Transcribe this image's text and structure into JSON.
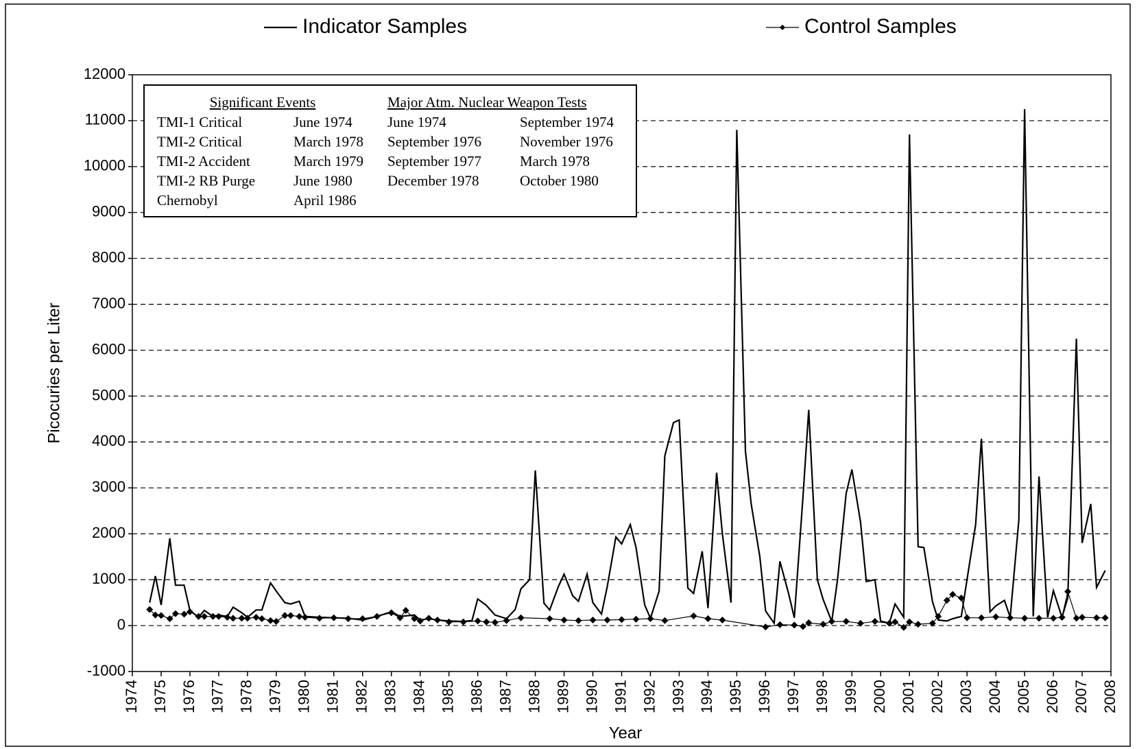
{
  "chart_data": {
    "type": "line",
    "x_label": "Year",
    "y_label": "Picocuries per Liter",
    "xlim": [
      1974,
      2008
    ],
    "xticks": [
      1974,
      1975,
      1976,
      1977,
      1978,
      1979,
      1980,
      1981,
      1982,
      1983,
      1984,
      1985,
      1986,
      1987,
      1988,
      1989,
      1990,
      1991,
      1992,
      1993,
      1994,
      1995,
      1996,
      1997,
      1998,
      1999,
      2000,
      2001,
      2002,
      2003,
      2004,
      2005,
      2006,
      2007,
      2008
    ],
    "ylim": [
      -1000,
      12000
    ],
    "yticks": [
      -1000,
      0,
      1000,
      2000,
      3000,
      4000,
      5000,
      6000,
      7000,
      8000,
      9000,
      10000,
      11000,
      12000
    ],
    "grid": true,
    "series": [
      {
        "name": "Indicator Samples",
        "color": "#000000",
        "marker": "none",
        "x": [
          1974.6,
          1974.8,
          1975.0,
          1975.3,
          1975.5,
          1975.8,
          1976.0,
          1976.3,
          1976.5,
          1976.8,
          1977.0,
          1977.3,
          1977.5,
          1977.8,
          1978.0,
          1978.3,
          1978.5,
          1978.8,
          1979.0,
          1979.3,
          1979.5,
          1979.8,
          1980.0,
          1980.5,
          1981.0,
          1981.5,
          1982.0,
          1982.5,
          1983.0,
          1983.3,
          1983.8,
          1984.0,
          1984.3,
          1984.6,
          1985.0,
          1985.5,
          1985.8,
          1986.0,
          1986.3,
          1986.6,
          1987.0,
          1987.3,
          1987.5,
          1987.8,
          1988.0,
          1988.3,
          1988.5,
          1988.8,
          1989.0,
          1989.3,
          1989.5,
          1989.8,
          1990.0,
          1990.3,
          1990.5,
          1990.8,
          1991.0,
          1991.3,
          1991.5,
          1991.8,
          1992.0,
          1992.3,
          1992.5,
          1992.8,
          1993.0,
          1993.3,
          1993.5,
          1993.8,
          1994.0,
          1994.3,
          1994.5,
          1994.8,
          1995.0,
          1995.3,
          1995.5,
          1995.8,
          1996.0,
          1996.3,
          1996.5,
          1996.8,
          1997.0,
          1997.3,
          1997.5,
          1997.8,
          1998.0,
          1998.3,
          1998.5,
          1998.8,
          1999.0,
          1999.3,
          1999.5,
          1999.8,
          2000.0,
          2000.3,
          2000.5,
          2000.8,
          2001.0,
          2001.3,
          2001.5,
          2001.8,
          2002.0,
          2002.3,
          2002.5,
          2002.8,
          2003.0,
          2003.3,
          2003.5,
          2003.8,
          2004.0,
          2004.3,
          2004.5,
          2004.8,
          2005.0,
          2005.3,
          2005.5,
          2005.8,
          2006.0,
          2006.3,
          2006.5,
          2006.8,
          2007.0,
          2007.3,
          2007.5,
          2007.8
        ],
        "values": [
          500,
          1080,
          450,
          1900,
          880,
          880,
          330,
          180,
          330,
          200,
          230,
          200,
          400,
          280,
          180,
          340,
          340,
          930,
          750,
          500,
          470,
          530,
          200,
          180,
          170,
          160,
          120,
          200,
          300,
          200,
          230,
          120,
          150,
          120,
          100,
          90,
          110,
          580,
          440,
          230,
          150,
          350,
          800,
          1000,
          3380,
          490,
          340,
          850,
          1120,
          650,
          530,
          1120,
          500,
          250,
          850,
          1930,
          1780,
          2200,
          1700,
          450,
          160,
          750,
          3700,
          4420,
          4480,
          820,
          700,
          1620,
          380,
          3330,
          2000,
          500,
          10800,
          3800,
          2650,
          1500,
          320,
          50,
          1400,
          700,
          170,
          2800,
          4700,
          1000,
          570,
          90,
          1000,
          2880,
          3400,
          2250,
          960,
          1000,
          100,
          50,
          470,
          180,
          10700,
          1720,
          1700,
          520,
          120,
          100,
          150,
          200,
          1000,
          2200,
          4070,
          300,
          430,
          550,
          180,
          2300,
          11250,
          200,
          3250,
          180,
          760,
          180,
          600,
          6250,
          1800,
          2650,
          830,
          1200
        ]
      },
      {
        "name": "Control Samples",
        "color": "#000000",
        "marker": "diamond",
        "x": [
          1974.6,
          1974.8,
          1975.0,
          1975.3,
          1975.5,
          1975.8,
          1976.0,
          1976.3,
          1976.5,
          1976.8,
          1977.0,
          1977.3,
          1977.5,
          1977.8,
          1978.0,
          1978.3,
          1978.5,
          1978.8,
          1979.0,
          1979.3,
          1979.5,
          1979.8,
          1980.0,
          1980.5,
          1981.0,
          1981.5,
          1982.0,
          1982.5,
          1983.0,
          1983.3,
          1983.5,
          1983.8,
          1984.0,
          1984.3,
          1984.6,
          1985.0,
          1985.5,
          1986.0,
          1986.3,
          1986.6,
          1987.0,
          1987.5,
          1988.5,
          1989.0,
          1989.5,
          1990.0,
          1990.5,
          1991.0,
          1991.5,
          1992.0,
          1992.5,
          1993.5,
          1994.0,
          1994.5,
          1996.0,
          1996.5,
          1997.0,
          1997.3,
          1997.5,
          1998.0,
          1998.3,
          1998.8,
          1999.3,
          1999.8,
          2000.3,
          2000.5,
          2000.8,
          2001.0,
          2001.3,
          2001.8,
          2002.0,
          2002.3,
          2002.5,
          2002.8,
          2003.0,
          2003.5,
          2004.0,
          2004.5,
          2005.0,
          2005.5,
          2006.0,
          2006.3,
          2006.5,
          2006.8,
          2007.0,
          2007.5,
          2007.8
        ],
        "values": [
          350,
          230,
          220,
          150,
          260,
          250,
          300,
          200,
          200,
          200,
          200,
          180,
          160,
          160,
          160,
          180,
          150,
          110,
          90,
          220,
          220,
          200,
          180,
          160,
          170,
          150,
          150,
          200,
          280,
          170,
          330,
          150,
          100,
          160,
          120,
          80,
          80,
          100,
          80,
          70,
          110,
          170,
          150,
          120,
          110,
          120,
          120,
          130,
          140,
          150,
          110,
          210,
          150,
          120,
          -30,
          20,
          10,
          -20,
          60,
          30,
          90,
          90,
          50,
          90,
          50,
          80,
          -40,
          80,
          30,
          50,
          200,
          550,
          680,
          600,
          170,
          170,
          190,
          170,
          160,
          160,
          160,
          180,
          740,
          160,
          180,
          170,
          170
        ]
      }
    ],
    "events_table": {
      "header_left": "Significant Events",
      "header_right": "Major Atm. Nuclear Weapon Tests",
      "rows": [
        [
          "TMI-1 Critical",
          "June 1974",
          "June 1974",
          "September 1974"
        ],
        [
          "TMI-2 Critical",
          "March 1978",
          "September 1976",
          "November 1976"
        ],
        [
          "TMI-2 Accident",
          "March 1979",
          "September 1977",
          "March 1978"
        ],
        [
          "TMI-2 RB Purge",
          "June 1980",
          "December 1978",
          "October 1980"
        ],
        [
          "Chernobyl",
          "April 1986"
        ]
      ]
    }
  }
}
